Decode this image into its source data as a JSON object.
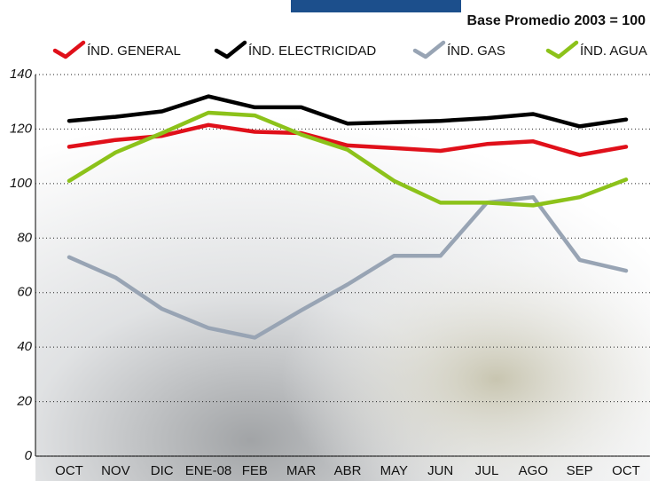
{
  "chart_data": {
    "type": "line",
    "subtitle": "Base Promedio 2003 = 100",
    "categories": [
      "OCT",
      "NOV",
      "DIC",
      "ENE-08",
      "FEB",
      "MAR",
      "ABR",
      "MAY",
      "JUN",
      "JUL",
      "AGO",
      "SEP",
      "OCT"
    ],
    "series": [
      {
        "name": "ÍND. GENERAL",
        "color": "#e0101a",
        "values": [
          113.5,
          116,
          117.5,
          121.5,
          119,
          118.5,
          114,
          113,
          112,
          114.5,
          115.5,
          110.5,
          113.5
        ]
      },
      {
        "name": "ÍND. ELECTRICIDAD",
        "color": "#000000",
        "values": [
          123,
          124.5,
          126.5,
          132,
          128,
          128,
          122,
          122.5,
          123,
          124,
          125.5,
          121,
          123.5
        ]
      },
      {
        "name": "ÍND. GAS",
        "color": "#98a4b4",
        "values": [
          73,
          65.5,
          54,
          47,
          43.5,
          53.5,
          63,
          73.5,
          73.5,
          93,
          95,
          72,
          68
        ]
      },
      {
        "name": "ÍND. AGUA",
        "color": "#8cc21a",
        "values": [
          101,
          111.4,
          118.5,
          126,
          125,
          118,
          112.4,
          101,
          93,
          93,
          92,
          95,
          101.5
        ]
      }
    ],
    "ylim": [
      0,
      140
    ],
    "yticks": [
      0,
      20,
      40,
      60,
      80,
      100,
      120,
      140
    ],
    "grid": true
  }
}
